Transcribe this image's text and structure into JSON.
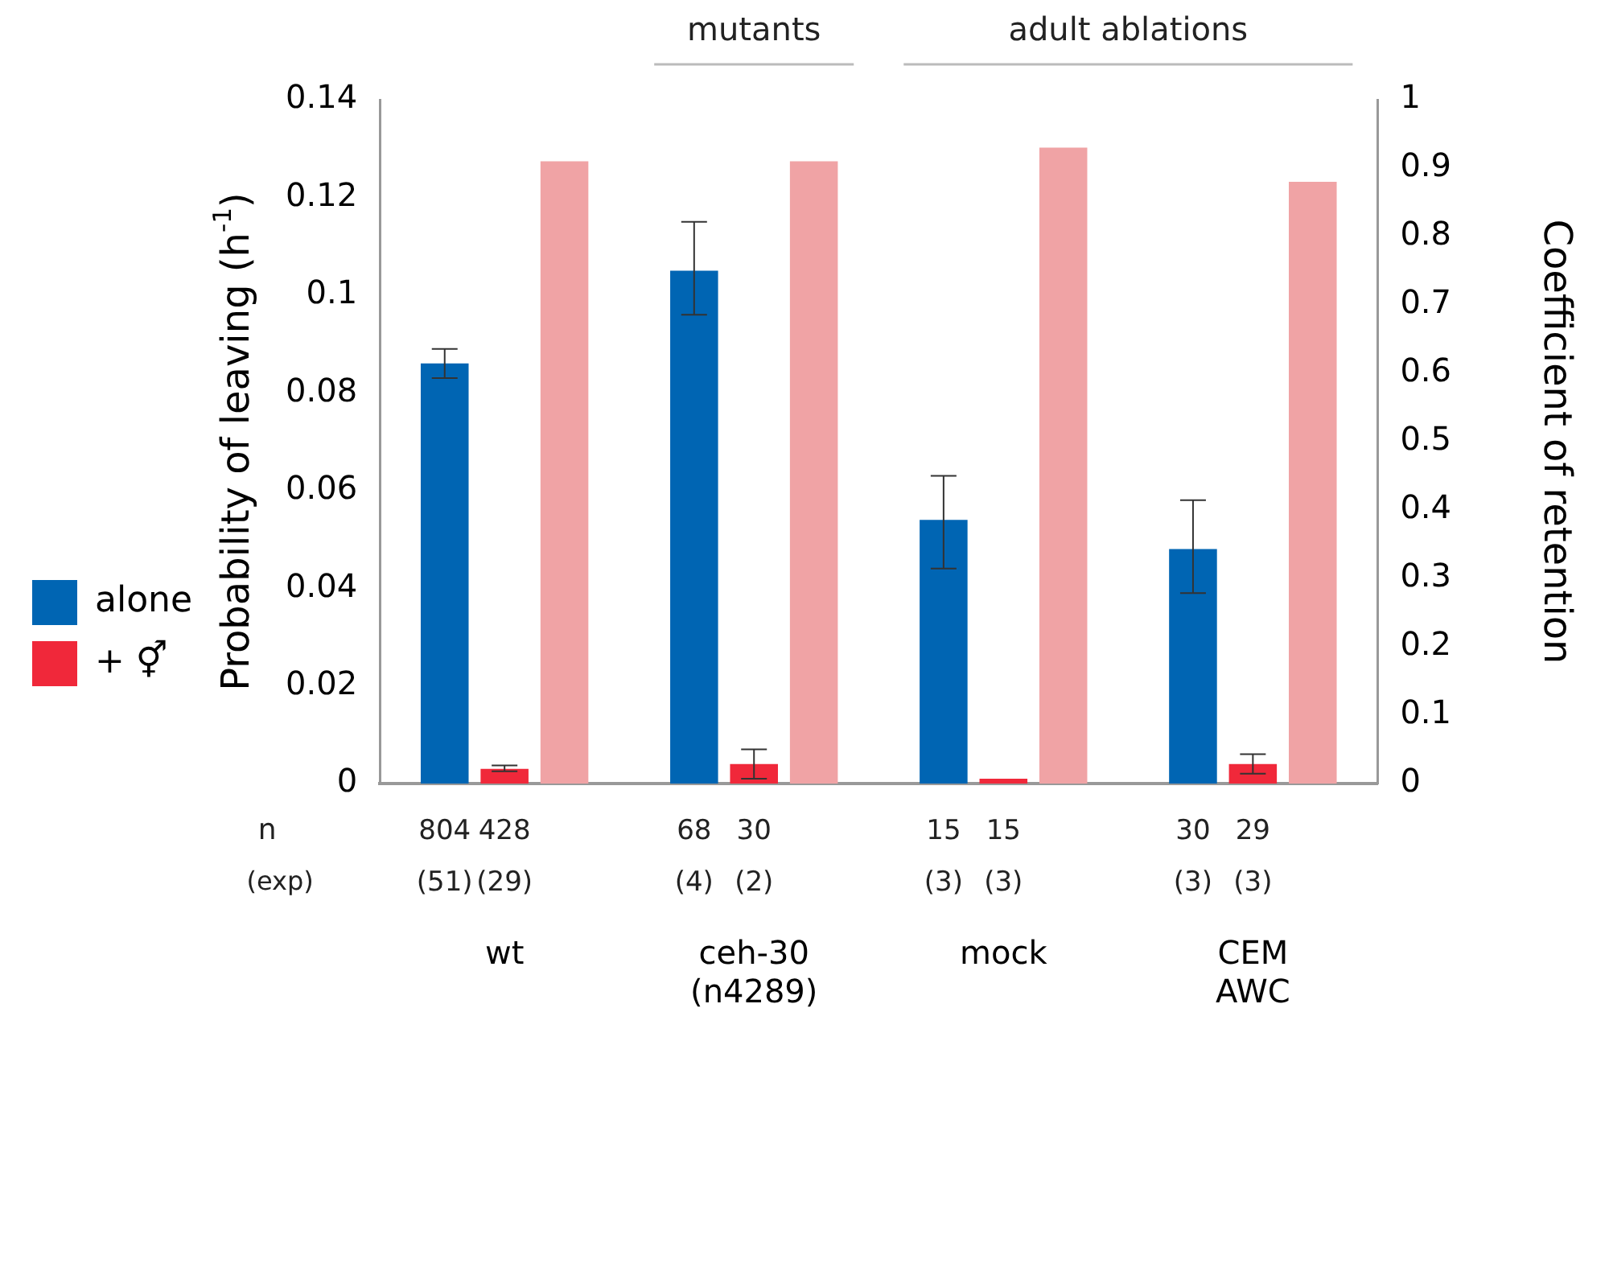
{
  "chart_data": {
    "type": "bar",
    "categories": [
      "wt",
      "ceh-30 (n4289)",
      "mock",
      "CEM AWC"
    ],
    "series": [
      {
        "name": "alone",
        "color": "#0065b3",
        "values": [
          0.086,
          0.105,
          0.054,
          0.048
        ],
        "errors": [
          [
            0.083,
            0.089
          ],
          [
            0.096,
            0.115
          ],
          [
            0.044,
            0.063
          ],
          [
            0.039,
            0.058
          ]
        ]
      },
      {
        "name": "+ ⚥",
        "color": "#f0283a",
        "values": [
          0.003,
          0.004,
          0.001,
          0.004
        ],
        "errors": [
          [
            0.0025,
            0.0037
          ],
          [
            0.001,
            0.007
          ],
          null,
          [
            0.002,
            0.006
          ]
        ]
      },
      {
        "color": "#f0a3a5",
        "axis": "y2",
        "values": [
          0.91,
          0.91,
          0.93,
          0.88
        ]
      }
    ],
    "ylabel": "Probability of leaving (h$^{-1}$)",
    "y2label": "Coefficient of retention",
    "ylim": [
      0,
      0.14
    ],
    "yticks": [
      0,
      0.02,
      0.04,
      0.06,
      0.08,
      {
        "value": 0.1,
        "label": "0.1"
      },
      0.12,
      0.14
    ],
    "y2lim": [
      0,
      1
    ],
    "y2ticks": [
      0,
      0.1,
      0.2,
      0.3,
      0.4,
      0.5,
      0.6,
      0.7,
      0.8,
      0.9,
      1
    ],
    "legend": "left",
    "grid": false,
    "annotations": [
      "mutants",
      "adult ablations",
      "n",
      "(exp)",
      "804 (51)",
      "428 (29)",
      "68 (4)",
      "30 (2)",
      "15 (3)",
      "15 (3)",
      "30 (3)",
      "29 (3)"
    ]
  }
}
